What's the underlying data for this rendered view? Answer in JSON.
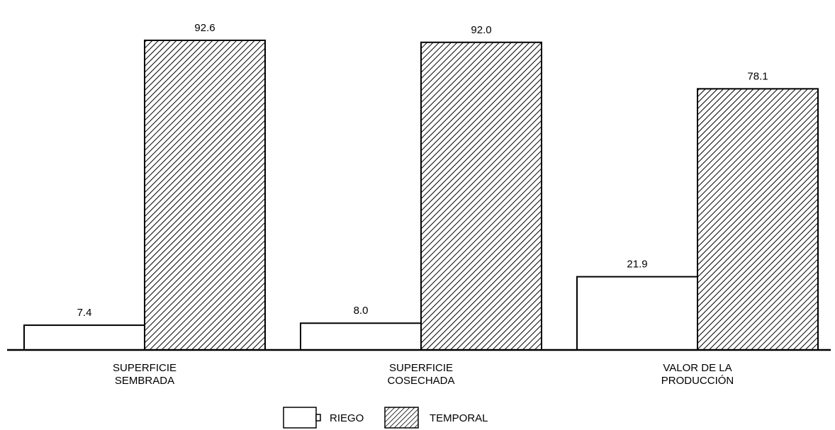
{
  "chart_data": {
    "type": "bar",
    "categories": [
      [
        "SUPERFICIE",
        "SEMBRADA"
      ],
      [
        "SUPERFICIE",
        "COSECHADA"
      ],
      [
        "VALOR DE LA",
        "PRODUCCIÓN"
      ]
    ],
    "series": [
      {
        "name": "RIEGO",
        "values": [
          7.4,
          8.0,
          21.9
        ],
        "value_labels": [
          "7.4",
          "8.0",
          "21.9"
        ],
        "fill": "white"
      },
      {
        "name": "TEMPORAL",
        "values": [
          92.6,
          92.0,
          78.1
        ],
        "value_labels": [
          "92.6",
          "92.0",
          "78.1"
        ],
        "fill": "diagonal-hatch"
      }
    ],
    "ylim": [
      0,
      100
    ],
    "grid": false,
    "legend_position": "bottom-center",
    "title": "",
    "xlabel": "",
    "ylabel": ""
  },
  "colors": {
    "stroke": "#000000",
    "background": "#ffffff",
    "hatch": "#000000"
  }
}
